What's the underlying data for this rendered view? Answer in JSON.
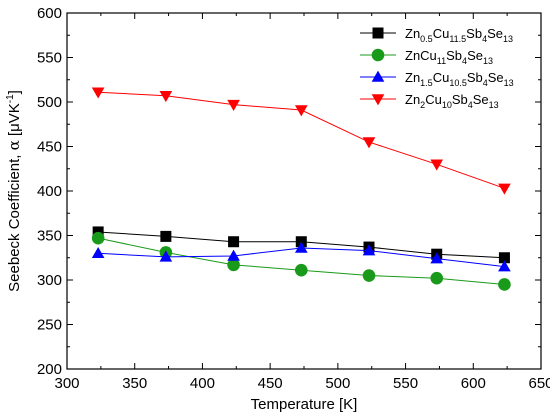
{
  "chart_data": {
    "type": "line",
    "title": "",
    "xlabel": "Temperature [K]",
    "ylabel_prefix": "Seebeck Coefficient, ",
    "ylabel_symbol": "α",
    "ylabel_unit_open": " [μVK",
    "ylabel_unit_sup": "-1",
    "ylabel_unit_close": "]",
    "xlim": [
      300,
      650
    ],
    "ylim": [
      200,
      600
    ],
    "xticks": [
      300,
      350,
      400,
      450,
      500,
      550,
      600,
      650
    ],
    "yticks": [
      200,
      250,
      300,
      350,
      400,
      450,
      500,
      550,
      600
    ],
    "grid": false,
    "legend_position": "top-right",
    "x": [
      323,
      373,
      423,
      473,
      523,
      573,
      623
    ],
    "series": [
      {
        "name": "Zn0.5Cu11.5Sb4Se13",
        "name_parts": [
          [
            "Zn",
            false
          ],
          [
            "0.5",
            true
          ],
          [
            "Cu",
            false
          ],
          [
            "11.5",
            true
          ],
          [
            "Sb",
            false
          ],
          [
            "4",
            true
          ],
          [
            "Se",
            false
          ],
          [
            "13",
            true
          ]
        ],
        "values": [
          354,
          349,
          343,
          343,
          337,
          329,
          325
        ],
        "color": "#000000",
        "marker": "square"
      },
      {
        "name": "ZnCu11Sb4Se13",
        "name_parts": [
          [
            "ZnCu",
            false
          ],
          [
            "11",
            true
          ],
          [
            "Sb",
            false
          ],
          [
            "4",
            true
          ],
          [
            "Se",
            false
          ],
          [
            "13",
            true
          ]
        ],
        "values": [
          347,
          331,
          317,
          311,
          305,
          302,
          295
        ],
        "color": "#1a9a1a",
        "marker": "circle"
      },
      {
        "name": "Zn1.5Cu10.5Sb4Se13",
        "name_parts": [
          [
            "Zn",
            false
          ],
          [
            "1.5",
            true
          ],
          [
            "Cu",
            false
          ],
          [
            "10.5",
            true
          ],
          [
            "Sb",
            false
          ],
          [
            "4",
            true
          ],
          [
            "Se",
            false
          ],
          [
            "13",
            true
          ]
        ],
        "values": [
          330,
          326,
          327,
          336,
          333,
          324,
          315
        ],
        "color": "#0000ff",
        "marker": "triangle-up"
      },
      {
        "name": "Zn2Cu10Sb4Se13",
        "name_parts": [
          [
            "Zn",
            false
          ],
          [
            "2",
            true
          ],
          [
            "Cu",
            false
          ],
          [
            "10",
            true
          ],
          [
            "Sb",
            false
          ],
          [
            "4",
            true
          ],
          [
            "Se",
            false
          ],
          [
            "13",
            true
          ]
        ],
        "values": [
          511,
          507,
          497,
          491,
          455,
          430,
          403
        ],
        "color": "#ff0000",
        "marker": "triangle-down"
      }
    ]
  }
}
